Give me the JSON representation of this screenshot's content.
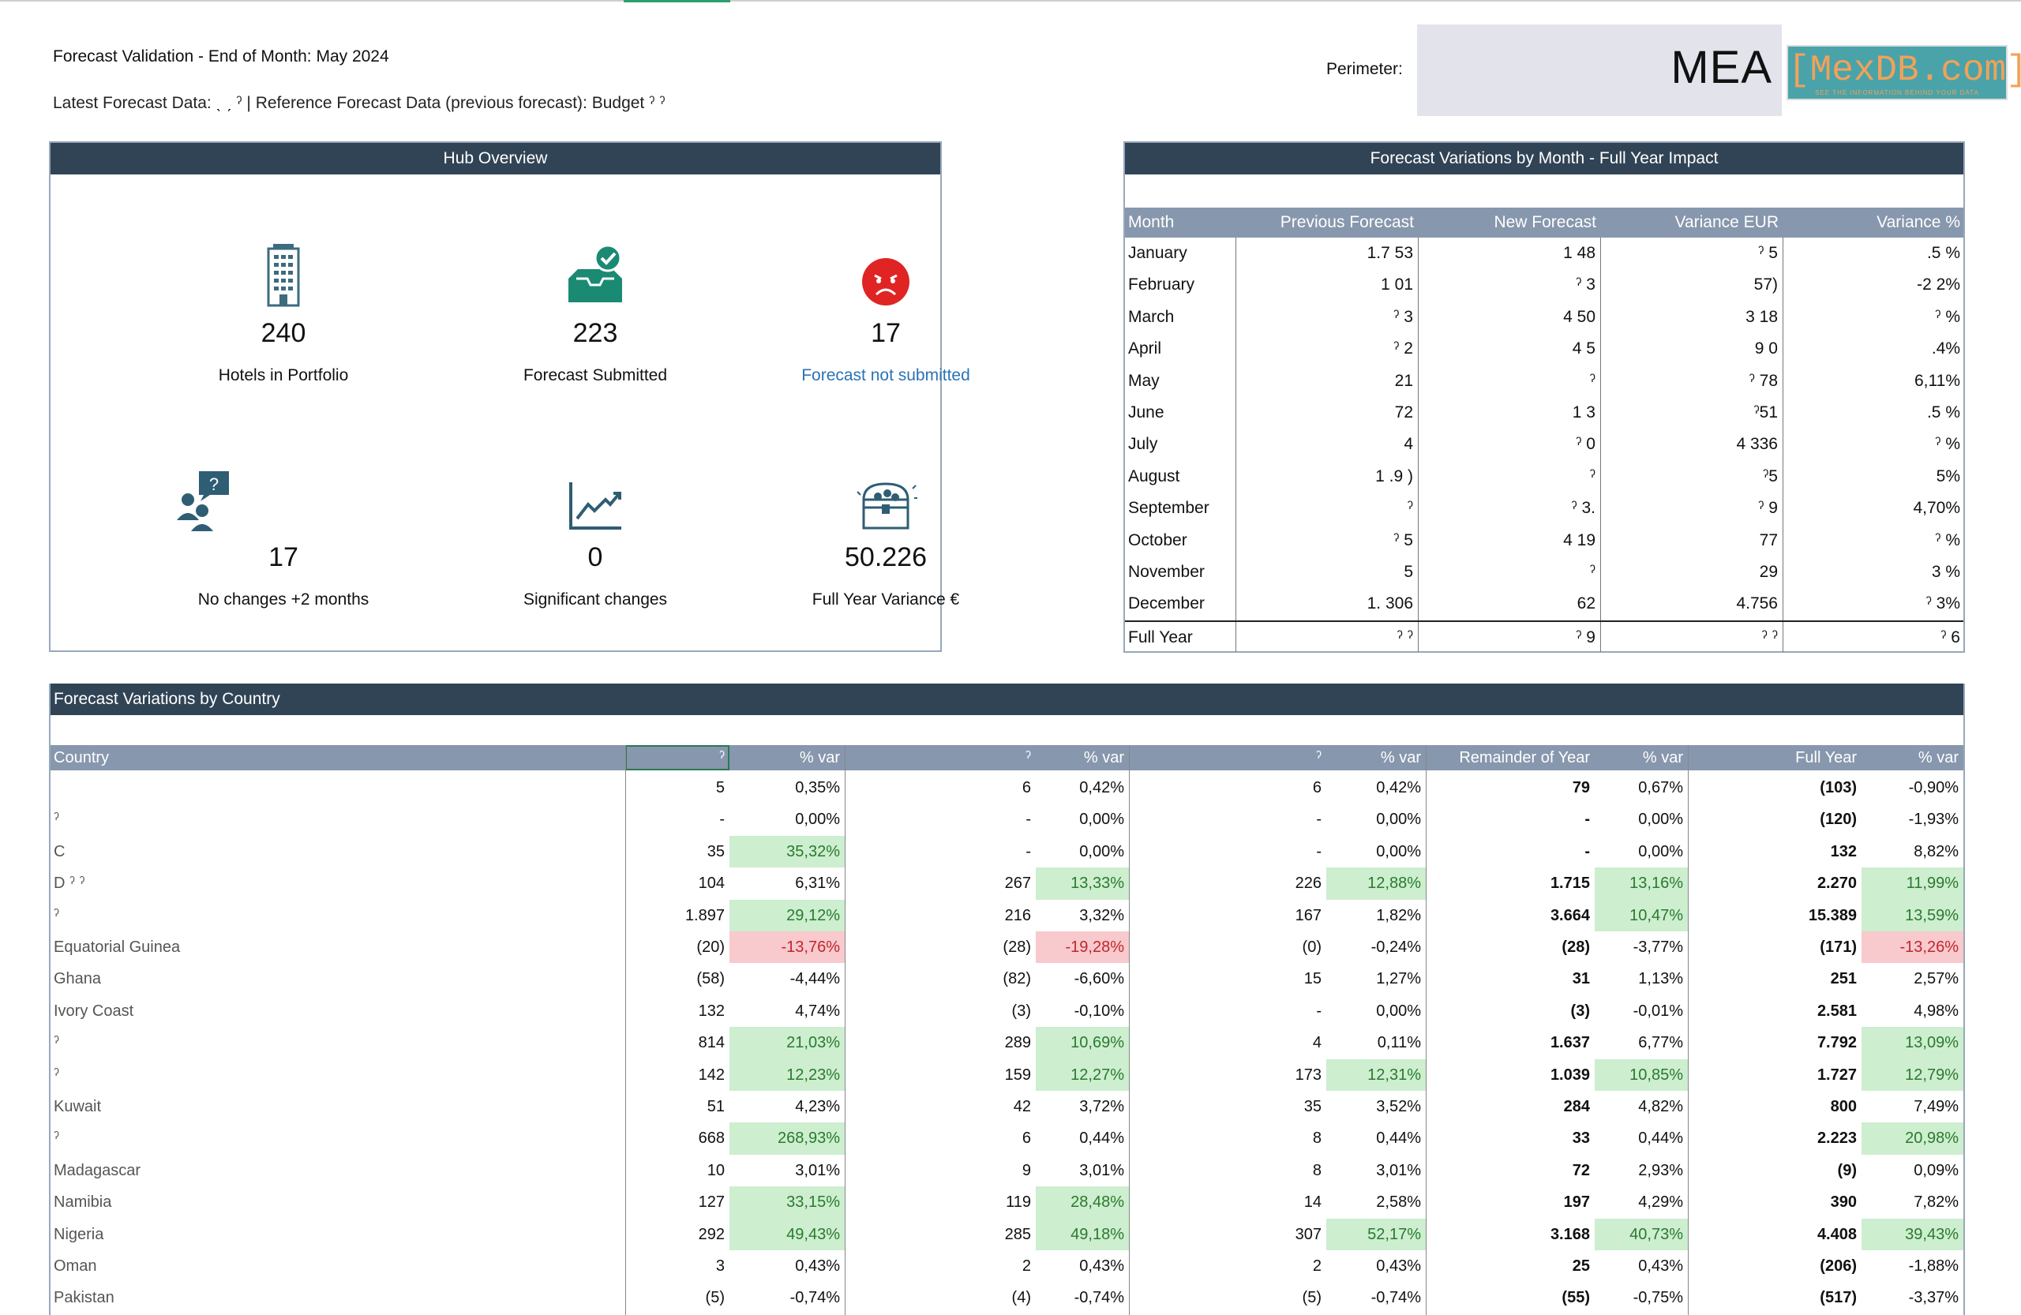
{
  "header": {
    "title": "Forecast Validation - End of Month: May 2024",
    "subtitle": "Latest Forecast Data: ˎ ˏ ˀ | Reference Forecast Data (previous forecast): Budget ˀ ˀ",
    "perimeter_label": "Perimeter:",
    "perimeter_value": "MEA",
    "logo_text": "[MexDB.com]",
    "logo_tagline": "SEE THE INFORMATION BEHIND YOUR DATA"
  },
  "hub": {
    "title": "Hub Overview",
    "kpis": [
      {
        "value": "240",
        "label": "Hotels in Portfolio",
        "icon": "building-icon"
      },
      {
        "value": "223",
        "label": "Forecast Submitted",
        "icon": "inbox-check-icon"
      },
      {
        "value": "17",
        "label": "Forecast not submitted",
        "icon": "sad-face-icon"
      },
      {
        "value": "17",
        "label": "No changes +2 months",
        "icon": "people-question-icon"
      },
      {
        "value": "0",
        "label": "Significant changes",
        "icon": "trend-chart-icon"
      },
      {
        "value": "50.226",
        "label": "Full Year Variance €",
        "icon": "treasure-chest-icon"
      }
    ]
  },
  "monthly": {
    "title": "Forecast Variations by Month - Full Year Impact",
    "columns": [
      "Month",
      "Previous Forecast",
      "New Forecast",
      "Variance EUR",
      "Variance %"
    ],
    "rows": [
      [
        "January",
        "1.7 53",
        "1 48",
        "ˀ 5",
        ".5 %"
      ],
      [
        "February",
        "1 01",
        "ˀ 3",
        "57)",
        "-2 2%"
      ],
      [
        "March",
        "ˀ 3",
        "4 50",
        "3 18",
        "ˀ %"
      ],
      [
        "April",
        "ˀ 2",
        "4 5",
        "9 0",
        ".4%"
      ],
      [
        "May",
        "21",
        "ˀ",
        "ˀ 78",
        "6,11%"
      ],
      [
        "June",
        "72",
        "1 3",
        "ˀ51",
        ".5 %"
      ],
      [
        "July",
        "4",
        "ˀ 0",
        "4 336",
        "ˀ %"
      ],
      [
        "August",
        "1 .9 )",
        "ˀ",
        "ˀ5",
        "5%"
      ],
      [
        "September",
        "ˀ",
        "ˀ 3.",
        "ˀ 9",
        "4,70%"
      ],
      [
        "October",
        "ˀ 5",
        "4 19",
        "77",
        "ˀ %"
      ],
      [
        "November",
        "5",
        "ˀ",
        "29",
        "3 %"
      ],
      [
        "December",
        "1. 306",
        "62",
        "4.756",
        "ˀ 3%"
      ]
    ],
    "total": [
      "Full Year",
      "ˀ ˀ",
      "ˀ 9",
      "ˀ ˀ",
      "ˀ 6"
    ]
  },
  "country": {
    "title": "Forecast Variations by Country",
    "columns": [
      "Country",
      "ˀ",
      "% var",
      "ˀ",
      "% var",
      "ˀ",
      "% var",
      "Remainder of Year",
      "% var",
      "Full Year",
      "% var"
    ],
    "rows": [
      {
        "name": "",
        "c1": "5",
        "p1": "0,35%",
        "c2": "6",
        "p2": "0,42%",
        "c3": "6",
        "p3": "0,42%",
        "c4": "79",
        "p4": "0,67%",
        "c5": "(103)",
        "p5": "-0,90%",
        "h": [
          0,
          0,
          0,
          0,
          0
        ]
      },
      {
        "name": "ˀ",
        "c1": "-",
        "p1": "0,00%",
        "c2": "-",
        "p2": "0,00%",
        "c3": "-",
        "p3": "0,00%",
        "c4": "-",
        "p4": "0,00%",
        "c5": "(120)",
        "p5": "-1,93%",
        "h": [
          0,
          0,
          0,
          0,
          0
        ]
      },
      {
        "name": "C",
        "c1": "35",
        "p1": "35,32%",
        "c2": "-",
        "p2": "0,00%",
        "c3": "-",
        "p3": "0,00%",
        "c4": "-",
        "p4": "0,00%",
        "c5": "132",
        "p5": "8,82%",
        "h": [
          1,
          0,
          0,
          0,
          0
        ]
      },
      {
        "name": "D ˀ ˀ",
        "c1": "104",
        "p1": "6,31%",
        "c2": "267",
        "p2": "13,33%",
        "c3": "226",
        "p3": "12,88%",
        "c4": "1.715",
        "p4": "13,16%",
        "c5": "2.270",
        "p5": "11,99%",
        "h": [
          0,
          1,
          1,
          1,
          1
        ]
      },
      {
        "name": "ˀ",
        "c1": "1.897",
        "p1": "29,12%",
        "c2": "216",
        "p2": "3,32%",
        "c3": "167",
        "p3": "1,82%",
        "c4": "3.664",
        "p4": "10,47%",
        "c5": "15.389",
        "p5": "13,59%",
        "h": [
          1,
          0,
          0,
          1,
          1
        ]
      },
      {
        "name": "Equatorial Guinea",
        "c1": "(20)",
        "p1": "-13,76%",
        "c2": "(28)",
        "p2": "-19,28%",
        "c3": "(0)",
        "p3": "-0,24%",
        "c4": "(28)",
        "p4": "-3,77%",
        "c5": "(171)",
        "p5": "-13,26%",
        "h": [
          -1,
          -1,
          0,
          0,
          -1
        ]
      },
      {
        "name": "Ghana",
        "c1": "(58)",
        "p1": "-4,44%",
        "c2": "(82)",
        "p2": "-6,60%",
        "c3": "15",
        "p3": "1,27%",
        "c4": "31",
        "p4": "1,13%",
        "c5": "251",
        "p5": "2,57%",
        "h": [
          0,
          0,
          0,
          0,
          0
        ]
      },
      {
        "name": "Ivory Coast",
        "c1": "132",
        "p1": "4,74%",
        "c2": "(3)",
        "p2": "-0,10%",
        "c3": "-",
        "p3": "0,00%",
        "c4": "(3)",
        "p4": "-0,01%",
        "c5": "2.581",
        "p5": "4,98%",
        "h": [
          0,
          0,
          0,
          0,
          0
        ]
      },
      {
        "name": "ˀ",
        "c1": "814",
        "p1": "21,03%",
        "c2": "289",
        "p2": "10,69%",
        "c3": "4",
        "p3": "0,11%",
        "c4": "1.637",
        "p4": "6,77%",
        "c5": "7.792",
        "p5": "13,09%",
        "h": [
          1,
          1,
          0,
          0,
          1
        ]
      },
      {
        "name": "ˀ",
        "c1": "142",
        "p1": "12,23%",
        "c2": "159",
        "p2": "12,27%",
        "c3": "173",
        "p3": "12,31%",
        "c4": "1.039",
        "p4": "10,85%",
        "c5": "1.727",
        "p5": "12,79%",
        "h": [
          1,
          1,
          1,
          1,
          1
        ]
      },
      {
        "name": "Kuwait",
        "c1": "51",
        "p1": "4,23%",
        "c2": "42",
        "p2": "3,72%",
        "c3": "35",
        "p3": "3,52%",
        "c4": "284",
        "p4": "4,82%",
        "c5": "800",
        "p5": "7,49%",
        "h": [
          0,
          0,
          0,
          0,
          0
        ]
      },
      {
        "name": "ˀ",
        "c1": "668",
        "p1": "268,93%",
        "c2": "6",
        "p2": "0,44%",
        "c3": "8",
        "p3": "0,44%",
        "c4": "33",
        "p4": "0,44%",
        "c5": "2.223",
        "p5": "20,98%",
        "h": [
          1,
          0,
          0,
          0,
          1
        ]
      },
      {
        "name": "Madagascar",
        "c1": "10",
        "p1": "3,01%",
        "c2": "9",
        "p2": "3,01%",
        "c3": "8",
        "p3": "3,01%",
        "c4": "72",
        "p4": "2,93%",
        "c5": "(9)",
        "p5": "0,09%",
        "h": [
          0,
          0,
          0,
          0,
          0
        ]
      },
      {
        "name": "Namibia",
        "c1": "127",
        "p1": "33,15%",
        "c2": "119",
        "p2": "28,48%",
        "c3": "14",
        "p3": "2,58%",
        "c4": "197",
        "p4": "4,29%",
        "c5": "390",
        "p5": "7,82%",
        "h": [
          1,
          1,
          0,
          0,
          0
        ]
      },
      {
        "name": "Nigeria",
        "c1": "292",
        "p1": "49,43%",
        "c2": "285",
        "p2": "49,18%",
        "c3": "307",
        "p3": "52,17%",
        "c4": "3.168",
        "p4": "40,73%",
        "c5": "4.408",
        "p5": "39,43%",
        "h": [
          1,
          1,
          1,
          1,
          1
        ]
      },
      {
        "name": "Oman",
        "c1": "3",
        "p1": "0,43%",
        "c2": "2",
        "p2": "0,43%",
        "c3": "2",
        "p3": "0,43%",
        "c4": "25",
        "p4": "0,43%",
        "c5": "(206)",
        "p5": "-1,88%",
        "h": [
          0,
          0,
          0,
          0,
          0
        ]
      },
      {
        "name": "Pakistan",
        "c1": "(5)",
        "p1": "-0,74%",
        "c2": "(4)",
        "p2": "-0,74%",
        "c3": "(5)",
        "p3": "-0,74%",
        "c4": "(55)",
        "p4": "-0,75%",
        "c5": "(517)",
        "p5": "-3,37%",
        "h": [
          0,
          0,
          0,
          0,
          0
        ]
      }
    ]
  }
}
